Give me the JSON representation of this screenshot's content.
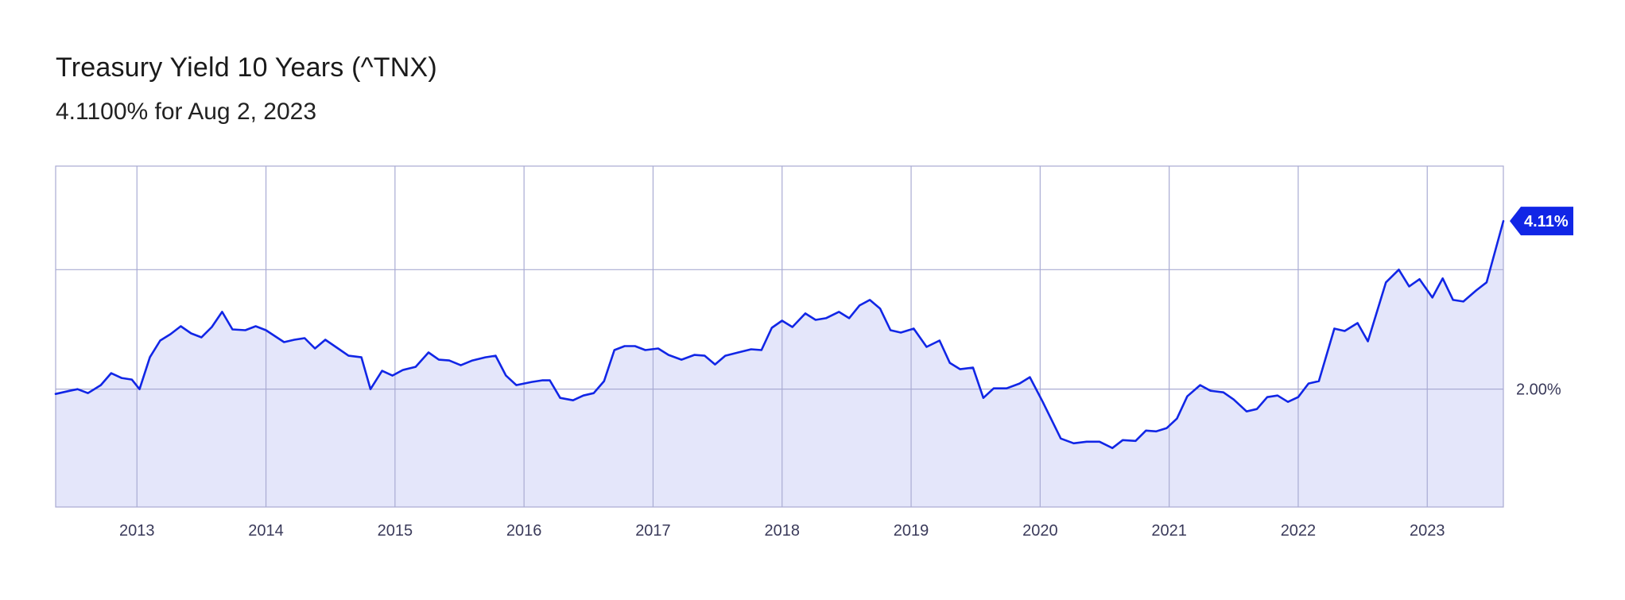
{
  "header": {
    "title": "Treasury Yield 10 Years (^TNX)",
    "subtitle": "4.1100% for Aug 2, 2023"
  },
  "colors": {
    "line": "#1126e6",
    "fill": "#e4e6fa",
    "grid": "#a9abd3",
    "badge": "#1126e6"
  },
  "chart_data": {
    "type": "area",
    "title": "Treasury Yield 10 Years (^TNX)",
    "xlabel": "",
    "ylabel": "",
    "x_tick_labels": [
      "2013",
      "2014",
      "2015",
      "2016",
      "2017",
      "2018",
      "2019",
      "2020",
      "2021",
      "2022",
      "2023"
    ],
    "x_ticks": [
      2013,
      2014,
      2015,
      2016,
      2017,
      2018,
      2019,
      2020,
      2021,
      2022,
      2023
    ],
    "xlim": [
      2012.37,
      2023.59
    ],
    "ylim": [
      0.52,
      4.8
    ],
    "y_gridlines": [
      2.0,
      3.5
    ],
    "y_tick_labels": [
      {
        "value": 2.0,
        "label": "2.00%"
      }
    ],
    "last_value_badge": {
      "value": 4.11,
      "label": "4.11%"
    },
    "grid": true,
    "series": [
      {
        "points": [
          [
            2012.37,
            1.94
          ],
          [
            2012.48,
            1.98
          ],
          [
            2012.54,
            2.0
          ],
          [
            2012.62,
            1.95
          ],
          [
            2012.72,
            2.05
          ],
          [
            2012.8,
            2.2
          ],
          [
            2012.88,
            2.14
          ],
          [
            2012.96,
            2.12
          ],
          [
            2013.02,
            2.0
          ],
          [
            2013.1,
            2.4
          ],
          [
            2013.18,
            2.61
          ],
          [
            2013.26,
            2.69
          ],
          [
            2013.34,
            2.79
          ],
          [
            2013.42,
            2.7
          ],
          [
            2013.5,
            2.65
          ],
          [
            2013.58,
            2.78
          ],
          [
            2013.66,
            2.97
          ],
          [
            2013.74,
            2.75
          ],
          [
            2013.84,
            2.74
          ],
          [
            2013.92,
            2.79
          ],
          [
            2014.0,
            2.74
          ],
          [
            2014.14,
            2.59
          ],
          [
            2014.22,
            2.62
          ],
          [
            2014.3,
            2.64
          ],
          [
            2014.38,
            2.51
          ],
          [
            2014.46,
            2.62
          ],
          [
            2014.55,
            2.52
          ],
          [
            2014.64,
            2.42
          ],
          [
            2014.74,
            2.4
          ],
          [
            2014.81,
            2.0
          ],
          [
            2014.9,
            2.23
          ],
          [
            2014.98,
            2.17
          ],
          [
            2015.06,
            2.24
          ],
          [
            2015.16,
            2.28
          ],
          [
            2015.26,
            2.46
          ],
          [
            2015.34,
            2.37
          ],
          [
            2015.42,
            2.36
          ],
          [
            2015.51,
            2.3
          ],
          [
            2015.6,
            2.36
          ],
          [
            2015.7,
            2.4
          ],
          [
            2015.78,
            2.42
          ],
          [
            2015.86,
            2.17
          ],
          [
            2015.94,
            2.05
          ],
          [
            2016.06,
            2.09
          ],
          [
            2016.14,
            2.11
          ],
          [
            2016.2,
            2.11
          ],
          [
            2016.28,
            1.89
          ],
          [
            2016.38,
            1.86
          ],
          [
            2016.46,
            1.92
          ],
          [
            2016.54,
            1.95
          ],
          [
            2016.62,
            2.1
          ],
          [
            2016.7,
            2.49
          ],
          [
            2016.78,
            2.54
          ],
          [
            2016.86,
            2.54
          ],
          [
            2016.94,
            2.49
          ],
          [
            2017.04,
            2.51
          ],
          [
            2017.12,
            2.43
          ],
          [
            2017.22,
            2.37
          ],
          [
            2017.32,
            2.43
          ],
          [
            2017.4,
            2.42
          ],
          [
            2017.48,
            2.31
          ],
          [
            2017.56,
            2.42
          ],
          [
            2017.66,
            2.46
          ],
          [
            2017.76,
            2.5
          ],
          [
            2017.84,
            2.49
          ],
          [
            2017.92,
            2.77
          ],
          [
            2018.0,
            2.86
          ],
          [
            2018.08,
            2.78
          ],
          [
            2018.18,
            2.95
          ],
          [
            2018.26,
            2.87
          ],
          [
            2018.34,
            2.89
          ],
          [
            2018.44,
            2.97
          ],
          [
            2018.52,
            2.89
          ],
          [
            2018.6,
            3.05
          ],
          [
            2018.68,
            3.12
          ],
          [
            2018.76,
            3.01
          ],
          [
            2018.84,
            2.74
          ],
          [
            2018.92,
            2.71
          ],
          [
            2019.02,
            2.76
          ],
          [
            2019.12,
            2.53
          ],
          [
            2019.22,
            2.61
          ],
          [
            2019.3,
            2.33
          ],
          [
            2019.38,
            2.25
          ],
          [
            2019.48,
            2.27
          ],
          [
            2019.56,
            1.89
          ],
          [
            2019.64,
            2.01
          ],
          [
            2019.74,
            2.01
          ],
          [
            2019.84,
            2.07
          ],
          [
            2019.92,
            2.15
          ],
          [
            2020.02,
            1.84
          ],
          [
            2020.16,
            1.38
          ],
          [
            2020.26,
            1.32
          ],
          [
            2020.36,
            1.34
          ],
          [
            2020.46,
            1.34
          ],
          [
            2020.56,
            1.26
          ],
          [
            2020.64,
            1.36
          ],
          [
            2020.74,
            1.35
          ],
          [
            2020.82,
            1.48
          ],
          [
            2020.9,
            1.47
          ],
          [
            2020.98,
            1.51
          ],
          [
            2021.06,
            1.63
          ],
          [
            2021.14,
            1.91
          ],
          [
            2021.24,
            2.05
          ],
          [
            2021.32,
            1.98
          ],
          [
            2021.42,
            1.96
          ],
          [
            2021.5,
            1.87
          ],
          [
            2021.6,
            1.72
          ],
          [
            2021.68,
            1.75
          ],
          [
            2021.76,
            1.9
          ],
          [
            2021.84,
            1.92
          ],
          [
            2021.92,
            1.84
          ],
          [
            2022.0,
            1.9
          ],
          [
            2022.08,
            2.07
          ],
          [
            2022.16,
            2.1
          ],
          [
            2022.28,
            2.76
          ],
          [
            2022.36,
            2.73
          ],
          [
            2022.46,
            2.83
          ],
          [
            2022.54,
            2.6
          ],
          [
            2022.68,
            3.34
          ],
          [
            2022.78,
            3.5
          ],
          [
            2022.86,
            3.29
          ],
          [
            2022.94,
            3.38
          ],
          [
            2023.04,
            3.15
          ],
          [
            2023.12,
            3.39
          ],
          [
            2023.2,
            3.12
          ],
          [
            2023.28,
            3.1
          ],
          [
            2023.38,
            3.24
          ],
          [
            2023.46,
            3.34
          ],
          [
            2023.59,
            4.11
          ]
        ]
      }
    ]
  }
}
